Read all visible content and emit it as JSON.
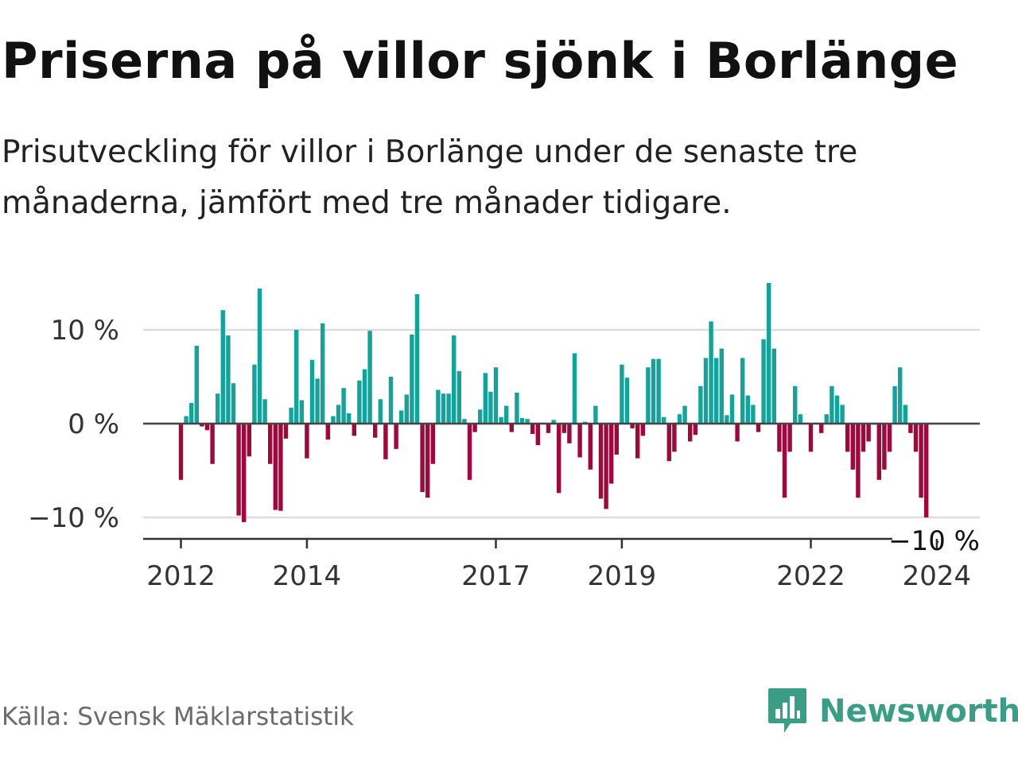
{
  "header": {
    "title": "Priserna på villor sjönk i Borlänge",
    "subtitle": "Prisutveckling för villor i Borlänge under de senaste tre månaderna, jämfört med tre månader tidigare."
  },
  "colors": {
    "positive": "#14a39a",
    "negative": "#a0083b",
    "brand": "#3a9e86"
  },
  "chart_data": {
    "type": "bar",
    "title": "Priserna på villor sjönk i Borlänge",
    "xlabel": "",
    "ylabel": "",
    "unit": "%",
    "ylim": [
      -12.5,
      16.5
    ],
    "yticks": [
      10,
      0,
      -10
    ],
    "ytick_labels": [
      "10 %",
      "0 %",
      "−10 %"
    ],
    "xtick_labels": [
      "2012",
      "2014",
      "2017",
      "2019",
      "2022",
      "2024"
    ],
    "xtick_months": [
      0,
      24,
      60,
      84,
      120,
      144
    ],
    "grid": true,
    "last_value_label": "−10 %",
    "start": "2012-01",
    "series": [
      {
        "name": "Prisutveckling",
        "values": [
          -6,
          0.8,
          2.2,
          8.3,
          -0.3,
          -0.7,
          -4.3,
          3.2,
          12.1,
          9.4,
          4.3,
          -9.8,
          -10.5,
          -3.5,
          6.3,
          14.4,
          2.6,
          -4.3,
          -9.2,
          -9.3,
          -1.6,
          1.7,
          10,
          2.5,
          -3.7,
          6.8,
          4.8,
          10.7,
          -1.7,
          0.8,
          2,
          3.8,
          1.1,
          -1.3,
          4.6,
          5.8,
          9.9,
          -1.5,
          2.6,
          -3.8,
          5,
          -2.7,
          1.4,
          3.1,
          9.5,
          13.8,
          -7.3,
          -7.9,
          -4.3,
          3.6,
          3.2,
          3.2,
          9.4,
          5.6,
          0.5,
          -6,
          -0.9,
          1.5,
          5.4,
          3.4,
          6,
          0.7,
          1.9,
          -0.9,
          3.3,
          0.6,
          0.5,
          -1.1,
          -2.3,
          0.1,
          -1,
          0.4,
          -7.4,
          -1,
          -2.1,
          7.5,
          -3.6,
          0.2,
          -4.9,
          1.9,
          -8,
          -9.1,
          -6.4,
          -3.3,
          6.3,
          4.9,
          -0.5,
          -3.7,
          -1.3,
          6,
          6.9,
          6.9,
          0.7,
          -4,
          -3,
          1,
          1.9,
          -1.9,
          -1.2,
          4,
          7,
          10.9,
          7,
          8,
          0.9,
          3.1,
          -1.9,
          7,
          3,
          2,
          -0.9,
          9,
          15,
          8,
          -3,
          -7.9,
          -3,
          4,
          1,
          0.1,
          -3,
          0.1,
          -1,
          1,
          4,
          3,
          2,
          -3,
          -4.9,
          -7.9,
          -3,
          -1.9,
          -0.1,
          -6,
          -4.9,
          -3,
          4,
          6,
          2,
          -1,
          -3,
          -7.9,
          -10
        ]
      }
    ]
  },
  "source": "Källa: Svensk Mäklarstatistik",
  "brand": {
    "name": "Newsworthy",
    "logo_icon": "bar-chart-speech-bubble-icon"
  }
}
